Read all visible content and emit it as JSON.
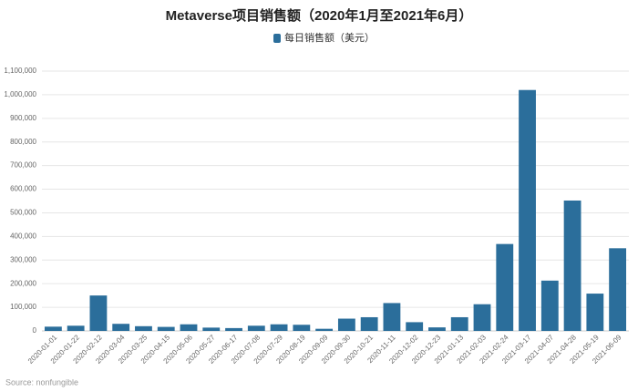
{
  "chart_data": {
    "type": "bar",
    "title": "Metaverse项目销售额（2020年1月至2021年6月）",
    "legend": "top",
    "source": "Source: nonfungible",
    "series": [
      {
        "name": "每日销售额（美元）",
        "color": "#2b6e9b",
        "values": [
          18000,
          22000,
          150000,
          30000,
          20000,
          17000,
          28000,
          14000,
          12000,
          22000,
          28000,
          26000,
          9000,
          52000,
          58000,
          118000,
          37000,
          15000,
          58000,
          113000,
          368000,
          1020000,
          213000,
          552000,
          158000,
          350000
        ]
      }
    ],
    "categories": [
      "2020-01-01",
      "2020-01-22",
      "2020-02-12",
      "2020-03-04",
      "2020-03-25",
      "2020-04-15",
      "2020-05-06",
      "2020-05-27",
      "2020-06-17",
      "2020-07-08",
      "2020-07-29",
      "2020-08-19",
      "2020-09-09",
      "2020-09-30",
      "2020-10-21",
      "2020-11-11",
      "2020-12-02",
      "2020-12-23",
      "2021-01-13",
      "2021-02-03",
      "2021-02-24",
      "2021-03-17",
      "2021-04-07",
      "2021-04-28",
      "2021-05-19",
      "2021-06-09"
    ],
    "ylim": [
      0,
      1100000
    ],
    "yticks": [
      0,
      {
        "value": 100000,
        "label": "100,000"
      },
      {
        "value": 200000,
        "label": "200,000"
      },
      {
        "value": 300000,
        "label": "300,000"
      },
      {
        "value": 400000,
        "label": "400,000"
      },
      {
        "value": 500000,
        "label": "500,000"
      },
      {
        "value": 600000,
        "label": "600,000"
      },
      {
        "value": 700000,
        "label": "700,000"
      },
      {
        "value": 800000,
        "label": "800,000"
      },
      {
        "value": 900000,
        "label": "900,000"
      },
      {
        "value": 1000000,
        "label": "1,000,000"
      },
      {
        "value": 1100000,
        "label": "1,100,000"
      }
    ],
    "grid": true
  }
}
